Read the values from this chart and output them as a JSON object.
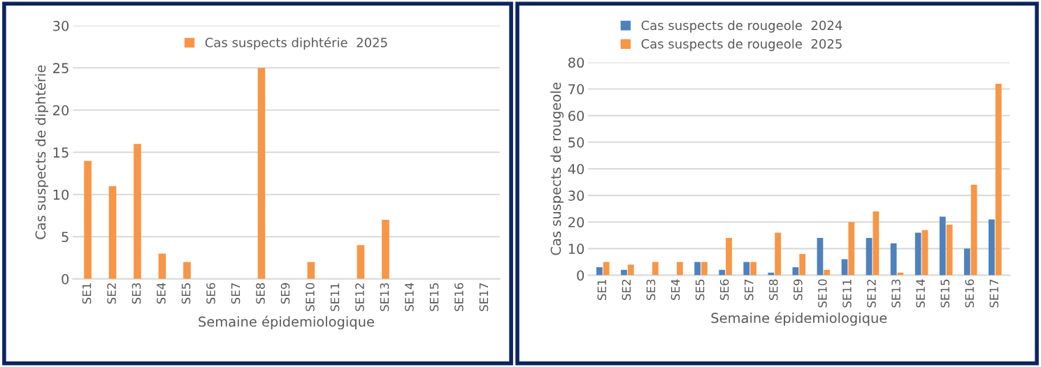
{
  "chart_data": [
    {
      "type": "bar",
      "xlabel": "Semaine épidemiologique",
      "ylabel": "Cas suspects de diphtérie",
      "categories": [
        "SE1",
        "SE2",
        "SE3",
        "SE4",
        "SE5",
        "SE6",
        "SE7",
        "SE8",
        "SE9",
        "SE10",
        "SE11",
        "SE12",
        "SE13",
        "SE14",
        "SE15",
        "SE16",
        "SE17"
      ],
      "series": [
        {
          "name": "Cas suspects diphtérie  2025",
          "color": "#f79646",
          "values": [
            14,
            11,
            16,
            3,
            2,
            0,
            0,
            25,
            0,
            2,
            0,
            4,
            7,
            0,
            0,
            0,
            0
          ]
        }
      ],
      "ylim": [
        0,
        30
      ],
      "yticks": [
        0,
        5,
        10,
        15,
        20,
        25,
        30
      ],
      "grid": "y",
      "legend": "top"
    },
    {
      "type": "bar",
      "xlabel": "Semaine épidemiologique",
      "ylabel": "Cas suspects de rougeole",
      "categories": [
        "SE1",
        "SE2",
        "SE3",
        "SE4",
        "SE5",
        "SE6",
        "SE7",
        "SE8",
        "SE9",
        "SE10",
        "SE11",
        "SE12",
        "SE13",
        "SE14",
        "SE15",
        "SE16",
        "SE17"
      ],
      "series": [
        {
          "name": "Cas suspects de rougeole  2024",
          "color": "#4f81bd",
          "values": [
            3,
            2,
            0,
            0,
            5,
            2,
            5,
            1,
            3,
            14,
            6,
            14,
            12,
            16,
            22,
            10,
            21
          ]
        },
        {
          "name": "Cas suspects de rougeole  2025",
          "color": "#f79646",
          "values": [
            5,
            4,
            5,
            5,
            5,
            14,
            5,
            16,
            8,
            2,
            20,
            24,
            1,
            17,
            19,
            34,
            72
          ]
        }
      ],
      "ylim": [
        0,
        80
      ],
      "yticks": [
        0,
        10,
        20,
        30,
        40,
        50,
        60,
        70,
        80
      ],
      "grid": "y",
      "legend": "top left"
    }
  ]
}
